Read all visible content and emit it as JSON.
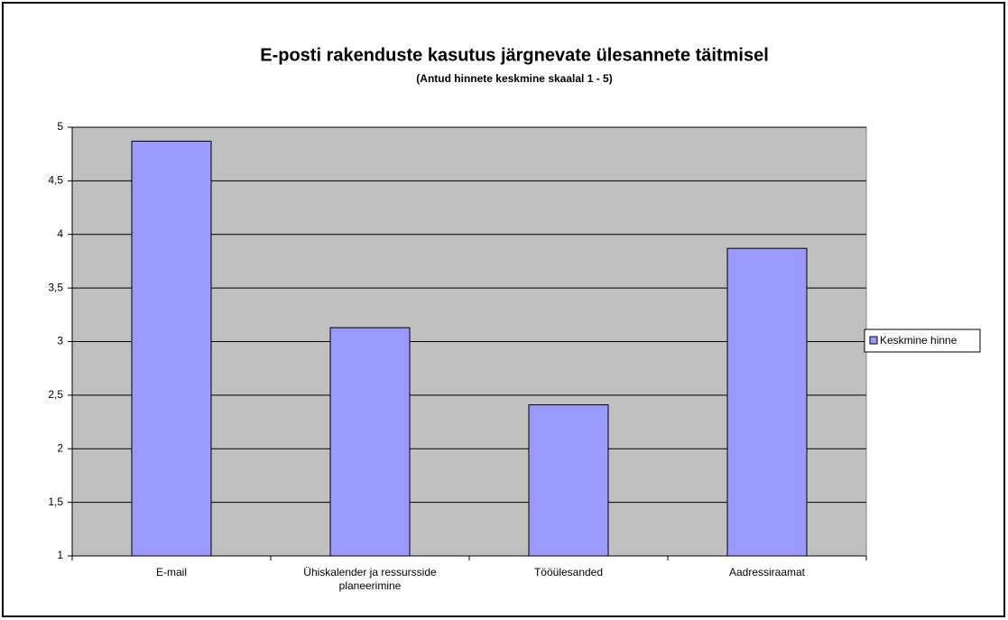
{
  "chart_data": {
    "type": "bar",
    "title": "E-posti rakenduste kasutus järgnevate ülesannete täitmisel",
    "subtitle": "(Antud hinnete keskmine skaalal 1 - 5)",
    "categories": [
      "E-mail",
      "Ühiskalender ja ressursside planeerimine",
      "Tööülesanded",
      "Aadressiraamat"
    ],
    "series": [
      {
        "name": "Keskmine hinne",
        "color": "#9999ff",
        "values": [
          4.87,
          3.13,
          2.41,
          3.87
        ]
      }
    ],
    "ylim": [
      1,
      5
    ],
    "yticks": [
      1,
      {
        "value": 1.5,
        "label": "1,5"
      },
      2,
      {
        "value": 2.5,
        "label": "2,5"
      },
      3,
      {
        "value": 3.5,
        "label": "3,5"
      },
      4,
      {
        "value": 4.5,
        "label": "4,5"
      },
      5
    ],
    "grid": true,
    "legend": "right"
  }
}
